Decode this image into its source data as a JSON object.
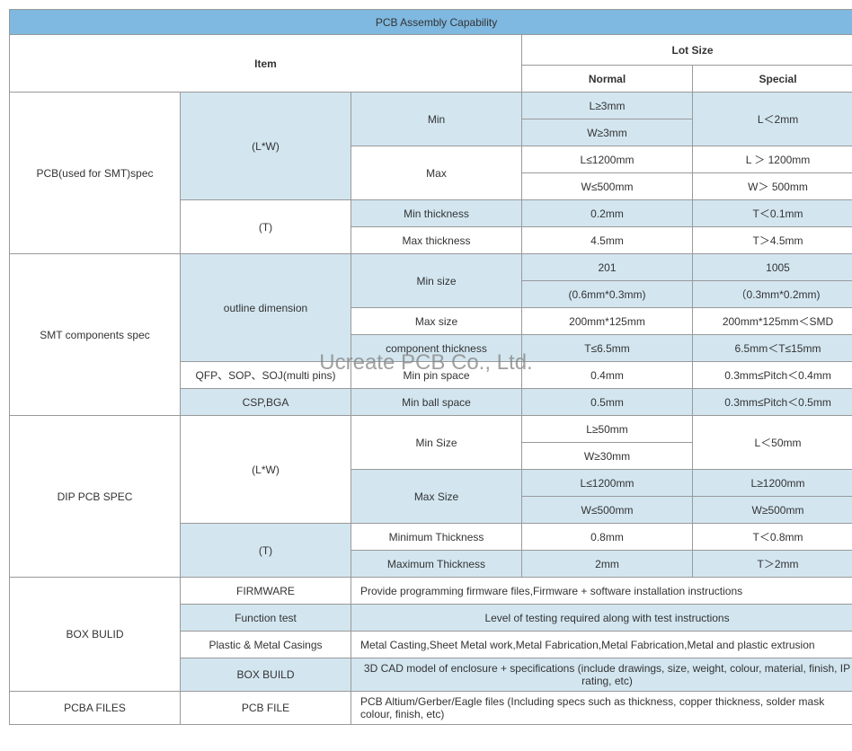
{
  "title": "PCB Assembly Capability",
  "headers": {
    "item": "Item",
    "lot_size": "Lot Size",
    "normal": "Normal",
    "special": "Special"
  },
  "watermark": "Ucreate PCB Co., Ltd.",
  "sections": {
    "pcb_smt": {
      "label": "PCB(used for SMT)spec",
      "lw": "(L*W)",
      "t": "(T)",
      "min": "Min",
      "max": "Max",
      "min_thickness": "Min thickness",
      "max_thickness": "Max thickness",
      "rows": {
        "min_l_n": "L≥3mm",
        "min_l_s": "L＜2mm",
        "min_w_n": "W≥3mm",
        "max_l_n": "L≤1200mm",
        "max_l_s": "L ＞ 1200mm",
        "max_w_n": "W≤500mm",
        "max_w_s": "W＞ 500mm",
        "min_t_n": "0.2mm",
        "min_t_s": "T＜0.1mm",
        "max_t_n": "4.5mm",
        "max_t_s": "T＞4.5mm"
      }
    },
    "smt_comp": {
      "label": "SMT components spec",
      "outline": "outline dimension",
      "qfp": "QFP、SOP、SOJ(multi pins)",
      "csp": "CSP,BGA",
      "min_size": "Min size",
      "max_size": "Max size",
      "comp_thickness": "component thickness",
      "min_pin": "Min pin space",
      "min_ball": "Min ball space",
      "rows": {
        "min_size_n1": "201",
        "min_size_s1": "1005",
        "min_size_n2": "(0.6mm*0.3mm)",
        "min_size_s2": "（0.3mm*0.2mm)",
        "max_size_n": "200mm*125mm",
        "max_size_s": "200mm*125mm＜SMD",
        "comp_t_n": "T≤6.5mm",
        "comp_t_s": "6.5mm＜T≤15mm",
        "min_pin_n": "0.4mm",
        "min_pin_s": "0.3mm≤Pitch＜0.4mm",
        "min_ball_n": "0.5mm",
        "min_ball_s": "0.3mm≤Pitch＜0.5mm"
      }
    },
    "dip": {
      "label": "DIP PCB SPEC",
      "lw": "(L*W)",
      "t": "(T)",
      "min_size": "Min Size",
      "max_size": "Max Size",
      "min_t": "Minimum Thickness",
      "max_t": "Maximum Thickness",
      "rows": {
        "min_l_n": "L≥50mm",
        "min_l_s": "L＜50mm",
        "min_w_n": "W≥30mm",
        "max_l_n": "L≤1200mm",
        "max_l_s": "L≥1200mm",
        "max_w_n": "W≤500mm",
        "max_w_s": "W≥500mm",
        "min_t_n": "0.8mm",
        "min_t_s": "T＜0.8mm",
        "max_t_n": "2mm",
        "max_t_s": "T＞2mm"
      }
    },
    "box": {
      "label": "BOX BULID",
      "firmware": "FIRMWARE",
      "firmware_v": "Provide programming firmware files,Firmware + software installation instructions",
      "func": "Function test",
      "func_v": "Level of testing required along with test instructions",
      "casing": "Plastic & Metal Casings",
      "casing_v": "Metal Casting,Sheet Metal work,Metal Fabrication,Metal Fabrication,Metal and plastic extrusion",
      "build": "BOX BUILD",
      "build_v": "3D CAD model of enclosure + specifications (include drawings, size, weight, colour, material, finish, IP rating, etc)"
    },
    "pcba": {
      "label": "PCBA FILES",
      "file": "PCB FILE",
      "file_v": "PCB Altium/Gerber/Eagle files (Including specs such as thickness, copper thickness, solder mask colour, finish, etc)"
    }
  },
  "colors": {
    "title_bg": "#7fb8e0",
    "light_bg": "#d3e6f0",
    "border": "#999999",
    "text": "#333333"
  }
}
